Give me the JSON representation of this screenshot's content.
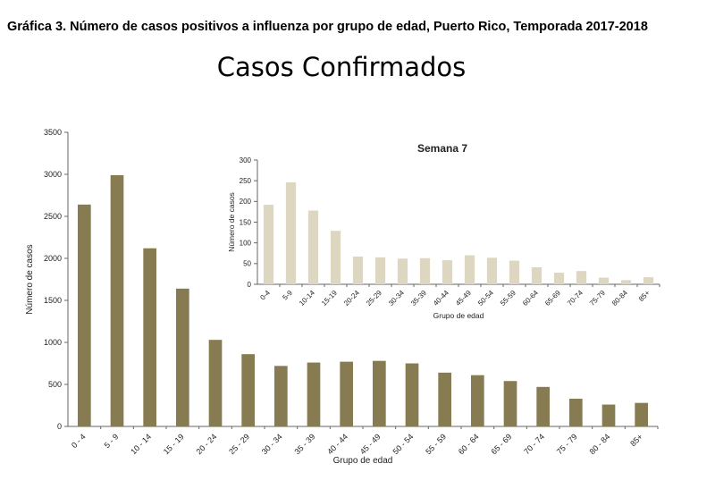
{
  "header": {
    "title": "Gráfica 3. Número de casos positivos a influenza por grupo de edad, Puerto Rico, Temporada 2017-2018"
  },
  "main_title": "Casos Confirmados",
  "chart_data": [
    {
      "type": "bar",
      "categories": [
        "0 - 4",
        "5 - 9",
        "10 - 14",
        "15 - 19",
        "20 - 24",
        "25 - 29",
        "30 - 34",
        "35 - 39",
        "40 - 44",
        "45 - 49",
        "50 - 54",
        "55 - 59",
        "60 - 64",
        "65 - 69",
        "70 - 74",
        "75 - 79",
        "80 - 84",
        "85+"
      ],
      "values": [
        2640,
        2990,
        2120,
        1640,
        1030,
        860,
        720,
        760,
        770,
        780,
        750,
        640,
        610,
        540,
        470,
        330,
        260,
        280
      ],
      "title": "",
      "xlabel": "Grupo de edad",
      "ylabel": "Número de casos",
      "ylim": [
        0,
        3500
      ],
      "yticks": [
        0,
        500,
        1000,
        1500,
        2000,
        2500,
        3000,
        3500
      ],
      "grid": false,
      "color": "#877b52"
    },
    {
      "type": "bar",
      "categories": [
        "0-4",
        "5-9",
        "10-14",
        "15-19",
        "20-24",
        "25-29",
        "30-34",
        "35-39",
        "40-44",
        "45-49",
        "50-54",
        "55-59",
        "60-64",
        "65-69",
        "70-74",
        "75-79",
        "80-84",
        "85+"
      ],
      "values": [
        192,
        246,
        178,
        129,
        67,
        65,
        62,
        63,
        58,
        70,
        64,
        57,
        41,
        28,
        32,
        16,
        10,
        17
      ],
      "title": "Semana 7",
      "xlabel": "Grupo de edad",
      "ylabel": "Número de casos",
      "ylim": [
        0,
        300
      ],
      "yticks": [
        0,
        50,
        100,
        150,
        200,
        250,
        300
      ],
      "grid": false,
      "color": "#ddd6c0"
    }
  ]
}
